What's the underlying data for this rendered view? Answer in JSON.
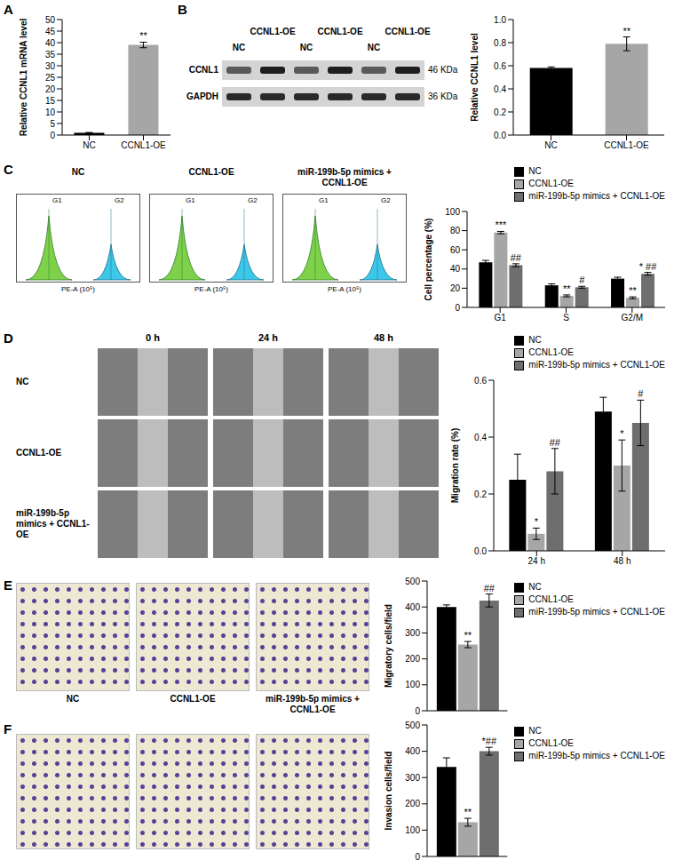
{
  "chart_data": [
    {
      "panel": "A",
      "type": "bar",
      "categories": [
        "NC",
        "CCNL1-OE"
      ],
      "series": [
        {
          "values": [
            1,
            39
          ],
          "errors": [
            0.1,
            1.2
          ],
          "annotations": [
            null,
            "**"
          ],
          "colors": [
            "#000000",
            "#a6a6a6"
          ]
        }
      ],
      "y_label": "Relative CCNL1 mRNA level",
      "ylim": [
        0,
        50
      ],
      "yticks": [
        0,
        5,
        10,
        15,
        20,
        25,
        30,
        35,
        40,
        45,
        50
      ]
    },
    {
      "panel": "B",
      "type": "bar",
      "categories": [
        "NC",
        "CCNL1-OE"
      ],
      "series": [
        {
          "values": [
            0.58,
            0.79
          ],
          "errors": [
            0.01,
            0.06
          ],
          "annotations": [
            null,
            "**"
          ],
          "colors": [
            "#000000",
            "#a6a6a6"
          ]
        }
      ],
      "y_label": "Relative CCNL1 level",
      "ylim": [
        0,
        1
      ],
      "yticks": [
        {
          "value": 0,
          "label": "0.0"
        },
        0.2,
        0.4,
        0.6,
        0.8,
        {
          "value": 1,
          "label": "1.0"
        }
      ]
    },
    {
      "panel": "C",
      "type": "bar",
      "categories": [
        "G1",
        "S",
        "G2/M"
      ],
      "series": [
        {
          "name": "NC",
          "color": "#000000",
          "values": [
            47,
            23,
            30
          ],
          "errors": [
            2,
            1.5,
            1.5
          ]
        },
        {
          "name": "CCNL1-OE",
          "color": "#a6a6a6",
          "values": [
            78,
            12,
            10
          ],
          "errors": [
            1.2,
            1,
            1
          ],
          "annotations": [
            "***",
            "**",
            "**"
          ]
        },
        {
          "name": "miR-199b-5p mimics + CCNL1-OE",
          "color": "#6e6e6e",
          "values": [
            44,
            21,
            35
          ],
          "errors": [
            1.5,
            1,
            1.5
          ],
          "annotations": [
            "##",
            "#",
            "* ##"
          ]
        }
      ],
      "y_label": "Cell percentage (%)",
      "ylim": [
        0,
        100
      ],
      "yticks": [
        0,
        20,
        40,
        60,
        80,
        100
      ],
      "legend": "top-right"
    },
    {
      "panel": "D",
      "type": "bar",
      "categories": [
        "24 h",
        "48 h"
      ],
      "series": [
        {
          "name": "NC",
          "color": "#000000",
          "values": [
            0.25,
            0.49
          ],
          "errors": [
            0.09,
            0.05
          ]
        },
        {
          "name": "CCNL1-OE",
          "color": "#a6a6a6",
          "values": [
            0.06,
            0.3
          ],
          "errors": [
            0.02,
            0.09
          ],
          "annotations": [
            "*",
            "*"
          ]
        },
        {
          "name": "miR-199b-5p mimics + CCNL1-OE",
          "color": "#6e6e6e",
          "values": [
            0.28,
            0.45
          ],
          "errors": [
            0.08,
            0.08
          ],
          "annotations": [
            "##",
            "#"
          ]
        }
      ],
      "y_label": "Migration rate (%)",
      "ylim": [
        0,
        0.6
      ],
      "yticks": [
        {
          "value": 0,
          "label": "0.0"
        },
        0.2,
        0.4,
        0.6
      ],
      "legend": "top-right"
    },
    {
      "panel": "E",
      "type": "bar",
      "categories": [
        null
      ],
      "series": [
        {
          "name": "NC",
          "color": "#000000",
          "values": [
            400
          ],
          "errors": [
            8
          ]
        },
        {
          "name": "CCNL1-OE",
          "color": "#a6a6a6",
          "values": [
            255
          ],
          "errors": [
            12
          ],
          "annotations": [
            "**"
          ]
        },
        {
          "name": "miR-199b-5p mimics + CCNL1-OE",
          "color": "#6e6e6e",
          "values": [
            425
          ],
          "errors": [
            25
          ],
          "annotations": [
            "##"
          ]
        }
      ],
      "y_label": "Migratory cells/field",
      "ylim": [
        0,
        500
      ],
      "yticks": [
        0,
        100,
        200,
        300,
        400,
        500
      ],
      "legend": "top-right",
      "tick_labels": "y"
    },
    {
      "panel": "F",
      "type": "bar",
      "categories": [
        null
      ],
      "series": [
        {
          "name": "NC",
          "color": "#000000",
          "values": [
            340
          ],
          "errors": [
            35
          ]
        },
        {
          "name": "CCNL1-OE",
          "color": "#a6a6a6",
          "values": [
            130
          ],
          "errors": [
            15
          ],
          "annotations": [
            "**"
          ]
        },
        {
          "name": "miR-199b-5p mimics + CCNL1-OE",
          "color": "#6e6e6e",
          "values": [
            400
          ],
          "errors": [
            15
          ],
          "annotations": [
            "*##"
          ]
        }
      ],
      "y_label": "Invasion cells/field",
      "ylim": [
        0,
        500
      ],
      "yticks": [
        0,
        100,
        200,
        300,
        400,
        500
      ],
      "legend": "top-right",
      "tick_labels": "y"
    }
  ],
  "images": {
    "B_blot": {
      "lanes": [
        "NC",
        "CCNL1-OE",
        "NC",
        "CCNL1-OE",
        "NC",
        "CCNL1-OE"
      ],
      "rows": [
        {
          "label": "CCNL1",
          "size": "46 KDa"
        },
        {
          "label": "GAPDH",
          "size": "36 KDa"
        }
      ]
    },
    "C_flow": {
      "panels": [
        "NC",
        "CCNL1-OE",
        "miR-199b-5p mimics + CCNL1-OE"
      ],
      "peaks": [
        "G1",
        "G2"
      ],
      "x_label": "PE-A (10⁵)"
    },
    "D_wound": {
      "columns": [
        "0 h",
        "24 h",
        "48 h"
      ],
      "rows": [
        "NC",
        "CCNL1-OE",
        "miR-199b-5p mimics + CCNL1-OE"
      ]
    },
    "E_transwell": {
      "captions": [
        "NC",
        "CCNL1-OE",
        "miR-199b-5p mimics + CCNL1-OE"
      ]
    }
  }
}
